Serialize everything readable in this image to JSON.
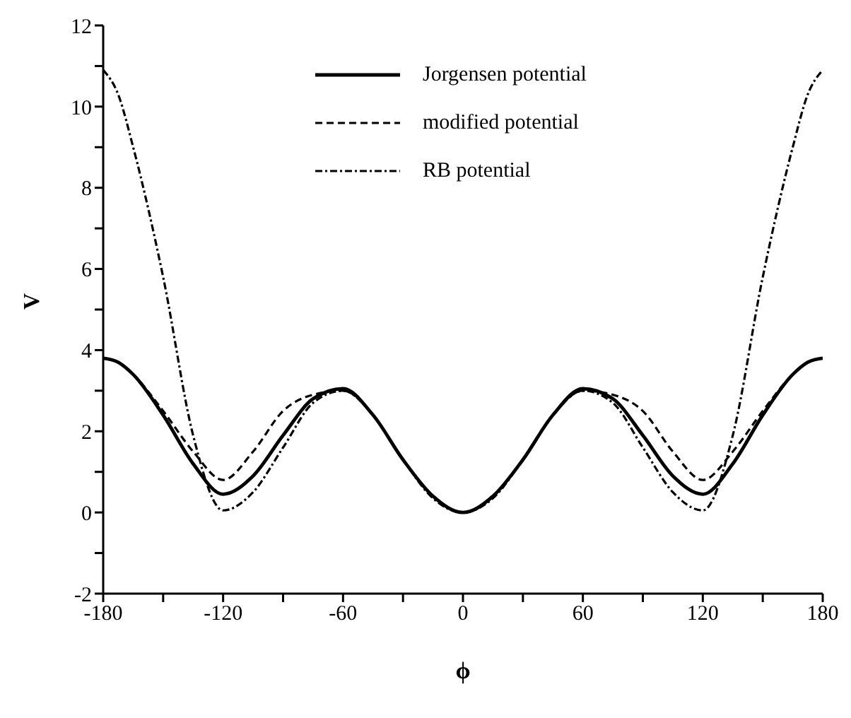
{
  "chart_data": {
    "type": "line",
    "xlabel": "ϕ",
    "ylabel": "V",
    "x": [
      -180,
      -172.5,
      -165,
      -150,
      -135,
      -120,
      -105,
      -90,
      -75,
      -60,
      -45,
      -30,
      -15,
      0,
      15,
      30,
      45,
      60,
      75,
      90,
      105,
      120,
      135,
      150,
      165,
      172.5,
      180
    ],
    "series": [
      {
        "name": "Jorgensen potential",
        "color": "#000000",
        "line_style": "solid",
        "values": [
          3.8,
          3.7,
          3.4,
          2.4,
          1.2,
          0.45,
          0.9,
          1.9,
          2.8,
          3.05,
          2.4,
          1.3,
          0.4,
          0,
          0.4,
          1.3,
          2.4,
          3.05,
          2.8,
          1.9,
          0.9,
          0.45,
          1.2,
          2.4,
          3.4,
          3.7,
          3.8
        ]
      },
      {
        "name": "modified potential",
        "color": "#000000",
        "line_style": "dashed",
        "values": [
          3.8,
          3.7,
          3.4,
          2.5,
          1.5,
          0.8,
          1.5,
          2.5,
          2.9,
          3.0,
          2.4,
          1.3,
          0.4,
          0,
          0.4,
          1.3,
          2.4,
          3.0,
          2.9,
          2.5,
          1.5,
          0.8,
          1.5,
          2.5,
          3.4,
          3.7,
          3.8
        ]
      },
      {
        "name": "RB potential",
        "color": "#000000",
        "line_style": "dotted",
        "values": [
          10.9,
          10.3,
          9.0,
          5.8,
          1.9,
          0.05,
          0.5,
          1.6,
          2.7,
          3.0,
          2.4,
          1.3,
          0.35,
          0,
          0.35,
          1.3,
          2.4,
          3.0,
          2.7,
          1.6,
          0.5,
          0.05,
          1.9,
          5.8,
          9.0,
          10.3,
          10.9
        ]
      }
    ],
    "xlim": [
      -180,
      180
    ],
    "xticks": [
      -180,
      {
        "value": -150,
        "label": null
      },
      -120,
      {
        "value": -90,
        "label": null
      },
      -60,
      {
        "value": -30,
        "label": null
      },
      0,
      {
        "value": 30,
        "label": null
      },
      60,
      {
        "value": 90,
        "label": null
      },
      120,
      {
        "value": 150,
        "label": null
      },
      180
    ],
    "ylim": [
      -2,
      12
    ],
    "yticks": [
      -2,
      {
        "value": -1,
        "label": null
      },
      0,
      {
        "value": 1,
        "label": null
      },
      2,
      {
        "value": 3,
        "label": null
      },
      4,
      {
        "value": 5,
        "label": null
      },
      6,
      {
        "value": 7,
        "label": null
      },
      8,
      {
        "value": 9,
        "label": null
      },
      10,
      {
        "value": 11,
        "label": null
      },
      12
    ],
    "grid": false,
    "legend": "top",
    "marker": "none"
  }
}
